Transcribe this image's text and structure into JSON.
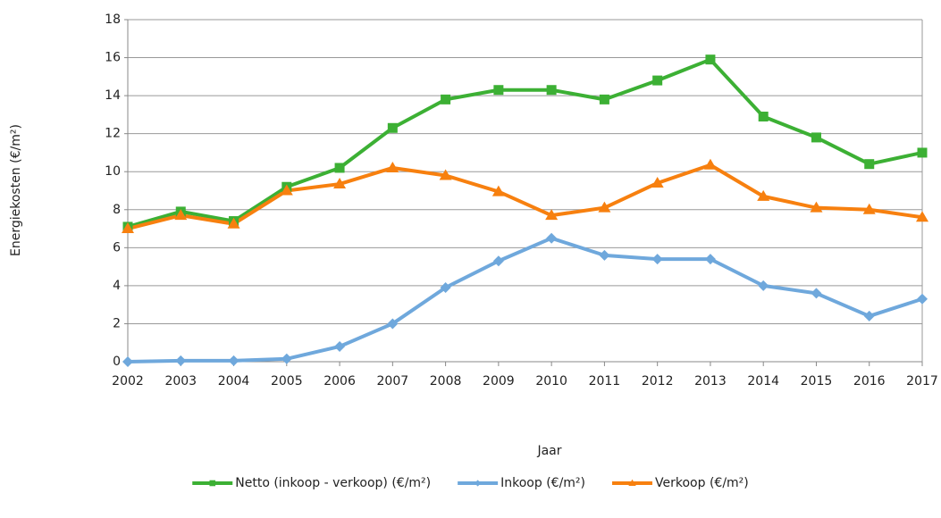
{
  "chart_data": {
    "type": "line",
    "x_label": "Jaar",
    "y_label": "Energiekosten (€/m²)",
    "x": [
      2002,
      2003,
      2004,
      2005,
      2006,
      2007,
      2008,
      2009,
      2010,
      2011,
      2012,
      2013,
      2014,
      2015,
      2016,
      2017
    ],
    "xlim": [
      2002,
      2017
    ],
    "xticks": [
      2002,
      2003,
      2004,
      2005,
      2006,
      2007,
      2008,
      2009,
      2010,
      2011,
      2012,
      2013,
      2014,
      2015,
      2016,
      2017
    ],
    "ylim": [
      0,
      18
    ],
    "yticks": [
      0,
      2,
      4,
      6,
      8,
      10,
      12,
      14,
      16,
      18
    ],
    "grid": true,
    "legend": "bottom",
    "series": [
      {
        "name": "Netto (inkoop - verkoop) (€/m²)",
        "color": "#3cb034",
        "marker": "square",
        "values": [
          7.1,
          7.9,
          7.4,
          9.2,
          10.2,
          12.3,
          13.8,
          14.3,
          14.3,
          13.8,
          14.8,
          15.9,
          12.9,
          11.8,
          10.4,
          11.0
        ]
      },
      {
        "name": "Inkoop (€/m²)",
        "color": "#6fa8dc",
        "marker": "diamond",
        "values": [
          0,
          0.05,
          0.05,
          0.15,
          0.8,
          2.0,
          3.9,
          5.3,
          6.5,
          5.6,
          5.4,
          5.4,
          4.0,
          3.6,
          2.4,
          3.3
        ]
      },
      {
        "name": "Verkoop (€/m²)",
        "color": "#f7800f",
        "marker": "triangle",
        "values": [
          7.0,
          7.7,
          7.25,
          9.0,
          9.35,
          10.2,
          9.8,
          8.95,
          7.7,
          8.1,
          9.4,
          10.35,
          8.7,
          8.1,
          8.0,
          7.6
        ]
      }
    ]
  }
}
